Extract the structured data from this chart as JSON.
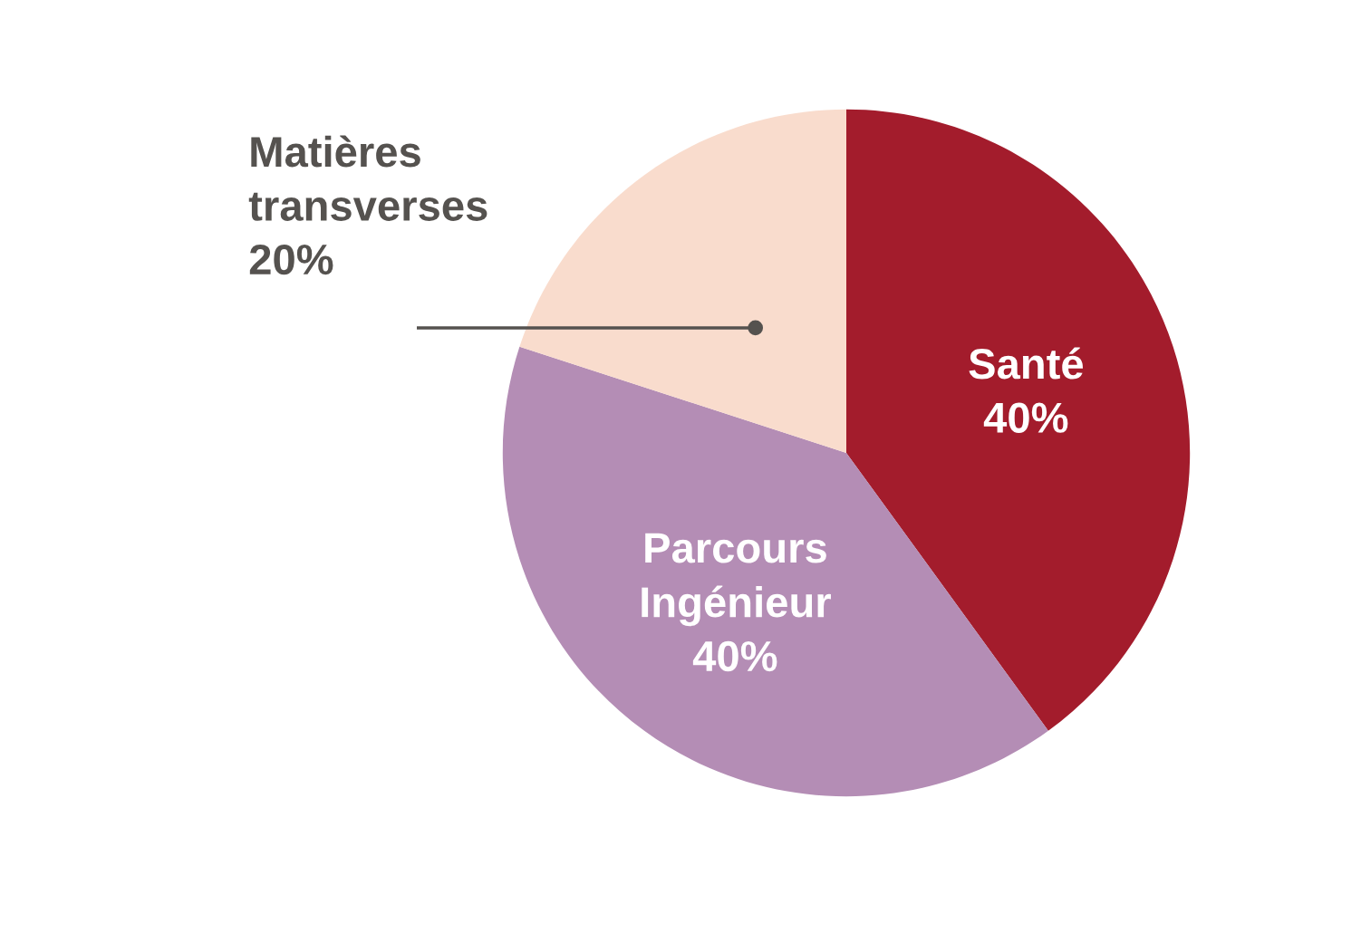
{
  "chart_data": {
    "type": "pie",
    "categories": [
      "Santé",
      "Parcours Ingénieur",
      "Matières transverses"
    ],
    "values": [
      40,
      40,
      20
    ],
    "value_labels": [
      "40%",
      "40%",
      "20%"
    ],
    "colors": [
      "#a31c2c",
      "#b48db5",
      "#f9dccd"
    ]
  }
}
